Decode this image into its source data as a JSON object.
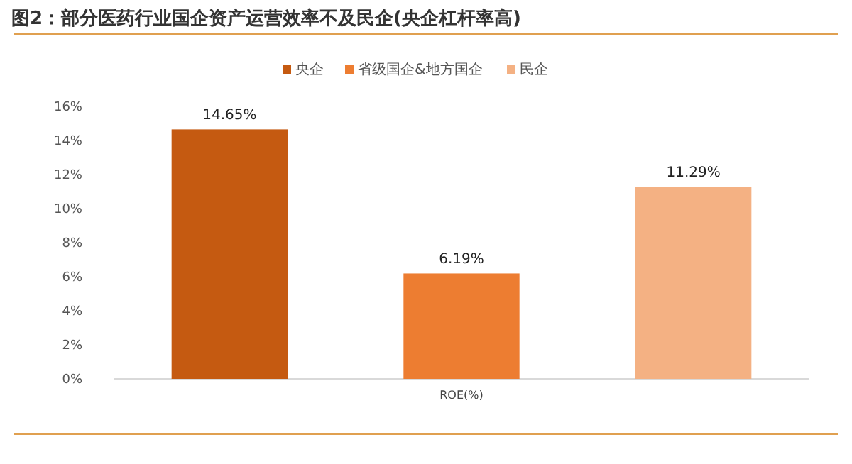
{
  "chart_data": {
    "type": "bar",
    "title": "图2：部分医药行业国企资产运营效率不及民企(央企杠杆率高)",
    "categories": [
      "ROE(%)"
    ],
    "series": [
      {
        "name": "央企",
        "color": "#c55a11",
        "values": [
          14.65
        ],
        "value_labels": [
          "14.65%"
        ]
      },
      {
        "name": "省级国企&地方国企",
        "color": "#ed7d31",
        "values": [
          6.19
        ],
        "value_labels": [
          "6.19%"
        ]
      },
      {
        "name": "民企",
        "color": "#f4b183",
        "values": [
          11.29
        ],
        "value_labels": [
          "11.29%"
        ]
      }
    ],
    "ylim": [
      0,
      16
    ],
    "yticks": [
      {
        "value": 0,
        "label": "0%"
      },
      {
        "value": 2,
        "label": "2%"
      },
      {
        "value": 4,
        "label": "4%"
      },
      {
        "value": 6,
        "label": "6%"
      },
      {
        "value": 8,
        "label": "8%"
      },
      {
        "value": 10,
        "label": "10%"
      },
      {
        "value": 12,
        "label": "12%"
      },
      {
        "value": 14,
        "label": "14%"
      },
      {
        "value": 16,
        "label": "16%"
      }
    ],
    "legend": "top",
    "grid": false
  }
}
